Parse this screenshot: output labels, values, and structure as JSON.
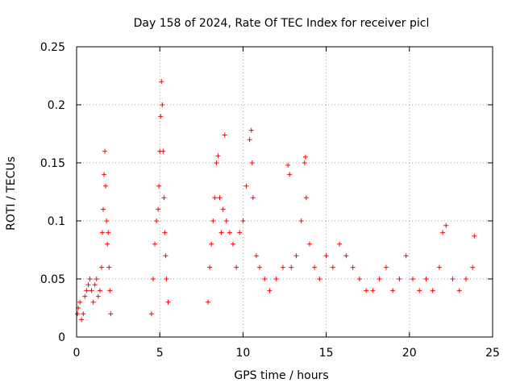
{
  "chart_data": {
    "type": "scatter",
    "title": "Day 158 of 2024, Rate Of TEC Index for receiver picl",
    "xlabel": "GPS time / hours",
    "ylabel": "ROTI / TECUs",
    "xlim": [
      0,
      25
    ],
    "ylim": [
      0,
      0.25
    ],
    "xticks": [
      0,
      5,
      10,
      15,
      20,
      25
    ],
    "yticks": [
      0,
      0.05,
      0.1,
      0.15,
      0.2,
      0.25
    ],
    "ytick_labels": [
      "0",
      "0.05",
      "0.1",
      "0.15",
      "0.2",
      "0.25"
    ],
    "grid": true,
    "marker": "+",
    "color": "#ff0000",
    "series": [
      {
        "name": "ROTI",
        "x": [
          0.05,
          0.1,
          0.2,
          0.3,
          0.4,
          0.5,
          0.6,
          0.7,
          0.8,
          0.9,
          1.0,
          1.1,
          1.2,
          1.3,
          1.4,
          1.5,
          1.55,
          1.6,
          1.65,
          1.7,
          1.75,
          1.8,
          1.85,
          1.9,
          1.95,
          2.0,
          2.05,
          4.5,
          4.6,
          4.7,
          4.8,
          4.9,
          4.95,
          5.0,
          5.05,
          5.1,
          5.15,
          5.2,
          5.25,
          5.3,
          5.35,
          5.4,
          5.5,
          7.9,
          8.0,
          8.1,
          8.2,
          8.3,
          8.4,
          8.5,
          8.6,
          8.7,
          8.8,
          8.9,
          9.0,
          9.2,
          9.4,
          9.6,
          9.8,
          10.0,
          10.2,
          10.4,
          10.5,
          10.55,
          10.6,
          10.8,
          11.0,
          11.3,
          11.6,
          12.0,
          12.4,
          12.7,
          12.8,
          12.9,
          13.2,
          13.5,
          13.7,
          13.75,
          13.8,
          14.0,
          14.3,
          14.6,
          15.0,
          15.4,
          15.8,
          16.2,
          16.6,
          17.0,
          17.4,
          17.8,
          18.2,
          18.6,
          19.0,
          19.4,
          19.8,
          20.2,
          20.6,
          21.0,
          21.4,
          21.8,
          22.0,
          22.2,
          22.6,
          23.0,
          23.4,
          23.8,
          23.9
        ],
        "y": [
          0.02,
          0.025,
          0.03,
          0.015,
          0.02,
          0.035,
          0.04,
          0.045,
          0.05,
          0.04,
          0.03,
          0.045,
          0.05,
          0.035,
          0.04,
          0.06,
          0.09,
          0.11,
          0.14,
          0.16,
          0.13,
          0.1,
          0.08,
          0.09,
          0.06,
          0.04,
          0.02,
          0.02,
          0.05,
          0.08,
          0.1,
          0.11,
          0.13,
          0.16,
          0.19,
          0.22,
          0.2,
          0.16,
          0.12,
          0.09,
          0.07,
          0.05,
          0.03,
          0.03,
          0.06,
          0.08,
          0.1,
          0.12,
          0.15,
          0.156,
          0.12,
          0.09,
          0.11,
          0.174,
          0.1,
          0.09,
          0.08,
          0.06,
          0.09,
          0.1,
          0.13,
          0.17,
          0.178,
          0.15,
          0.12,
          0.07,
          0.06,
          0.05,
          0.04,
          0.05,
          0.06,
          0.148,
          0.14,
          0.06,
          0.07,
          0.1,
          0.15,
          0.155,
          0.12,
          0.08,
          0.06,
          0.05,
          0.07,
          0.06,
          0.08,
          0.07,
          0.06,
          0.05,
          0.04,
          0.04,
          0.05,
          0.06,
          0.04,
          0.05,
          0.07,
          0.05,
          0.04,
          0.05,
          0.04,
          0.06,
          0.09,
          0.096,
          0.05,
          0.04,
          0.05,
          0.06,
          0.087
        ]
      }
    ]
  }
}
